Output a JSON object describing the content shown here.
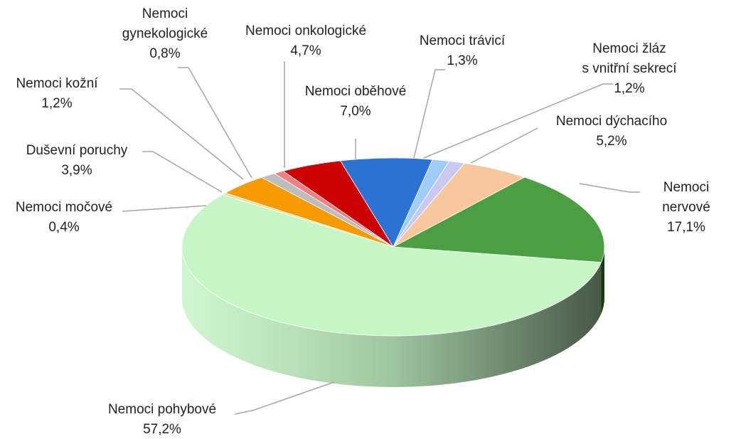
{
  "chart_data": {
    "type": "pie",
    "categories": [
      "Nemoci pohybové",
      "Nemoci močové",
      "Duševní poruchy",
      "Nemoci kožní",
      "Nemoci\ngynekologické",
      "Nemoci onkologické",
      "Nemoci oběhové",
      "Nemoci trávicí",
      "Nemoci žláz\ns vnitřní sekrecí",
      "Nemoci dýchacího",
      "Nemoci nervové"
    ],
    "values": [
      57.2,
      0.4,
      3.9,
      1.2,
      0.8,
      4.7,
      7.0,
      1.3,
      1.2,
      5.2,
      17.1
    ],
    "value_labels": [
      "57,2%",
      "0,4%",
      "3,9%",
      "1,2%",
      "0,8%",
      "4,7%",
      "7,0%",
      "1,3%",
      "1,2%",
      "5,2%",
      "17,1%"
    ],
    "colors": [
      "#c6f6c6",
      "#e8e0a0",
      "#f59a00",
      "#bdbdbd",
      "#f08080",
      "#cc0000",
      "#2b73d2",
      "#9fcdf6",
      "#c9c9f2",
      "#f6c89b",
      "#4c9e42"
    ]
  }
}
